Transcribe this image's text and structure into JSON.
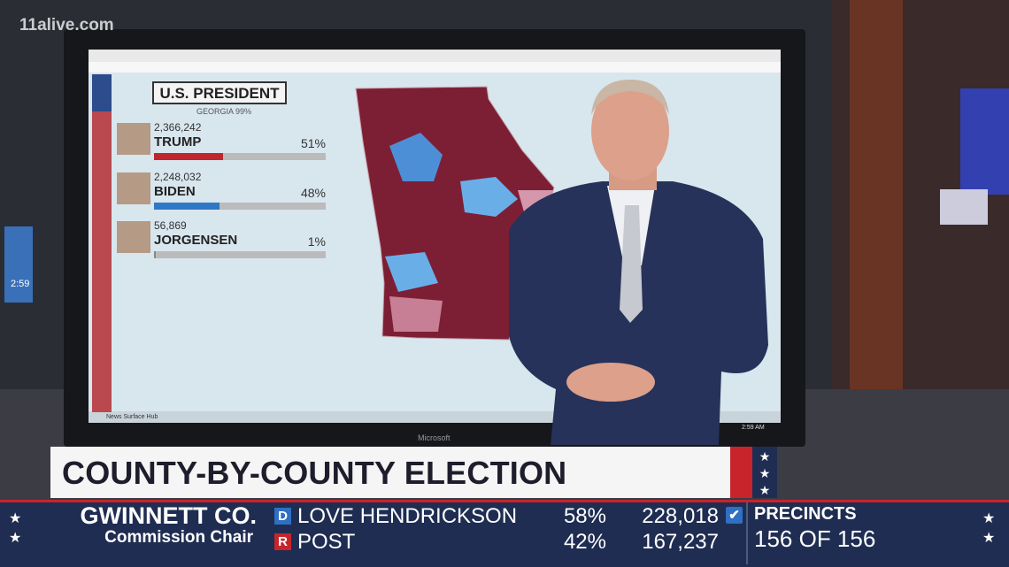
{
  "watermark": "11alive.com",
  "screen": {
    "panel_title": "U.S. PRESIDENT",
    "panel_subtitle": "GEORGIA 99%",
    "candidates": [
      {
        "votes": "2,366,242",
        "name": "TRUMP",
        "percent": "51%"
      },
      {
        "votes": "2,248,032",
        "name": "BIDEN",
        "percent": "48%"
      },
      {
        "votes": "56,869",
        "name": "JORGENSEN",
        "percent": "1%"
      }
    ],
    "footer_left": "News Surface Hub",
    "brand": "Microsoft",
    "clock": "2:59 AM"
  },
  "side_clock": "2:59",
  "headline": "COUNTY-BY-COUNTY ELECTION NUMBERS",
  "ticker": {
    "race": "GWINNETT CO.",
    "office": "Commission Chair",
    "results": [
      {
        "party": "D",
        "name": "LOVE HENDRICKSON",
        "percent": "58%",
        "votes": "228,018"
      },
      {
        "party": "R",
        "name": "POST",
        "percent": "42%",
        "votes": "167,237"
      }
    ],
    "precincts_label": "PRECINCTS",
    "precincts": "156 OF 156"
  }
}
